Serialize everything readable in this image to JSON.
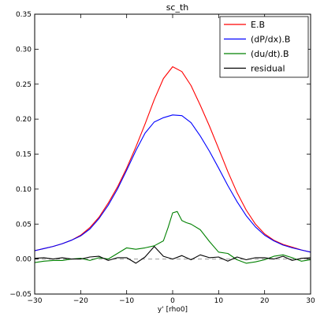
{
  "chart_data": {
    "type": "line",
    "title": "sc_th",
    "xlabel": "y' [rho0]",
    "ylabel": "",
    "xlim": [
      -30,
      30
    ],
    "ylim": [
      -0.05,
      0.35
    ],
    "x_ticks": [
      -30,
      -20,
      -10,
      0,
      10,
      20,
      30
    ],
    "y_ticks": [
      -0.05,
      0.0,
      0.05,
      0.1,
      0.15,
      0.2,
      0.25,
      0.3,
      0.35
    ],
    "x_tick_labels": [
      "−30",
      "−20",
      "−10",
      "0",
      "10",
      "20",
      "30"
    ],
    "y_tick_labels": [
      "−0.05",
      "0.00",
      "0.05",
      "0.10",
      "0.15",
      "0.20",
      "0.25",
      "0.30",
      "0.35"
    ],
    "grid": false,
    "legend_position": "top-right",
    "zero_reference_line": {
      "y": 0,
      "style": "dashed",
      "color": "#999999"
    },
    "series": [
      {
        "name": "E.B",
        "color": "#ff0000",
        "x": [
          -30,
          -28,
          -26,
          -24,
          -22,
          -20,
          -18,
          -16,
          -14,
          -12,
          -10,
          -8,
          -6,
          -4,
          -2,
          0,
          2,
          4,
          6,
          8,
          10,
          12,
          14,
          16,
          18,
          20,
          22,
          24,
          26,
          28,
          30
        ],
        "y": [
          0.012,
          0.015,
          0.018,
          0.022,
          0.027,
          0.034,
          0.045,
          0.06,
          0.08,
          0.103,
          0.13,
          0.16,
          0.193,
          0.228,
          0.258,
          0.275,
          0.268,
          0.248,
          0.22,
          0.19,
          0.158,
          0.125,
          0.095,
          0.07,
          0.05,
          0.036,
          0.027,
          0.021,
          0.017,
          0.013,
          0.01
        ]
      },
      {
        "name": "(dP/dx).B",
        "color": "#0000ff",
        "x": [
          -30,
          -28,
          -26,
          -24,
          -22,
          -20,
          -18,
          -16,
          -14,
          -12,
          -10,
          -8,
          -6,
          -4,
          -2,
          0,
          2,
          4,
          6,
          8,
          10,
          12,
          14,
          16,
          18,
          20,
          22,
          24,
          26,
          28,
          30
        ],
        "y": [
          0.012,
          0.015,
          0.018,
          0.022,
          0.027,
          0.033,
          0.043,
          0.058,
          0.077,
          0.1,
          0.127,
          0.155,
          0.18,
          0.196,
          0.202,
          0.206,
          0.205,
          0.195,
          0.176,
          0.154,
          0.13,
          0.105,
          0.082,
          0.062,
          0.046,
          0.034,
          0.026,
          0.02,
          0.016,
          0.013,
          0.01
        ]
      },
      {
        "name": "(du/dt).B",
        "color": "#008000",
        "x": [
          -30,
          -28,
          -26,
          -24,
          -22,
          -20,
          -18,
          -16,
          -14,
          -12,
          -10,
          -8,
          -6,
          -4,
          -2,
          -1,
          0,
          1,
          2,
          3,
          4,
          6,
          8,
          10,
          12,
          14,
          16,
          18,
          20,
          22,
          24,
          26,
          28,
          30
        ],
        "y": [
          -0.005,
          -0.003,
          -0.002,
          -0.002,
          0.0,
          0.001,
          -0.002,
          0.002,
          0.0,
          0.008,
          0.016,
          0.014,
          0.016,
          0.019,
          0.026,
          0.045,
          0.066,
          0.068,
          0.055,
          0.052,
          0.05,
          0.042,
          0.025,
          0.01,
          0.008,
          -0.001,
          -0.006,
          -0.004,
          -0.001,
          0.004,
          0.006,
          0.002,
          -0.003,
          -0.001
        ]
      },
      {
        "name": "residual",
        "color": "#000000",
        "x": [
          -30,
          -28,
          -26,
          -24,
          -22,
          -20,
          -18,
          -16,
          -14,
          -12,
          -10,
          -8,
          -6,
          -4,
          -2,
          0,
          2,
          4,
          6,
          8,
          10,
          12,
          14,
          16,
          18,
          20,
          22,
          24,
          26,
          28,
          30
        ],
        "y": [
          0.001,
          0.002,
          0.0,
          0.002,
          0.0,
          0.0,
          0.003,
          0.004,
          -0.002,
          0.002,
          0.002,
          -0.006,
          0.003,
          0.018,
          0.004,
          0.0,
          0.005,
          -0.001,
          0.006,
          0.002,
          0.003,
          -0.003,
          0.003,
          -0.001,
          0.002,
          0.002,
          0.0,
          0.004,
          -0.002,
          0.001,
          0.002
        ]
      }
    ]
  }
}
